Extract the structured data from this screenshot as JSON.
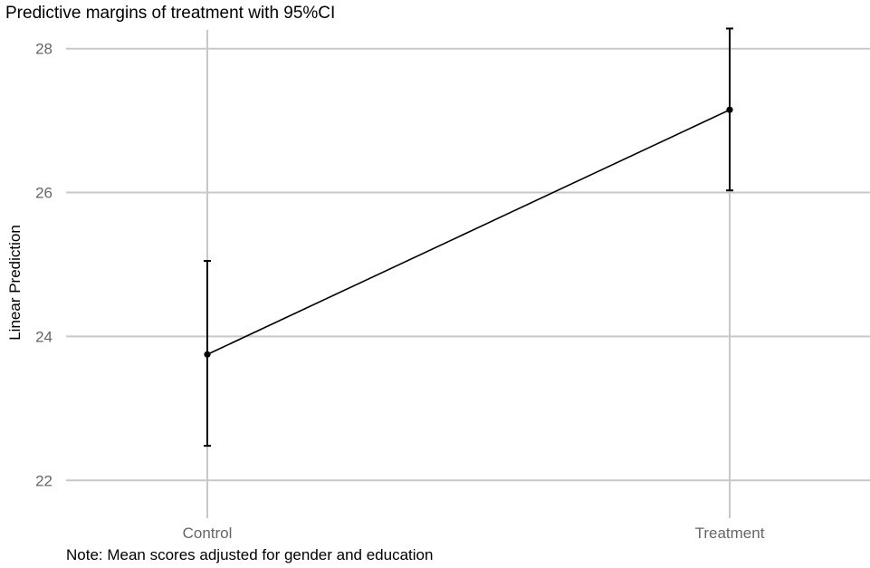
{
  "chart_data": {
    "type": "line",
    "title": "Predictive margins of treatment with 95%CI",
    "xlabel": "",
    "ylabel": "Linear Prediction",
    "categories": [
      "Control",
      "Treatment"
    ],
    "series": [
      {
        "values": [
          23.75,
          27.15
        ],
        "ci_lower": [
          22.48,
          26.03
        ],
        "ci_upper": [
          25.05,
          28.28
        ]
      }
    ],
    "ylim": [
      21.55,
      28.5
    ],
    "yticks": [
      22,
      24,
      26,
      28
    ],
    "grid": true,
    "legend": "none",
    "note": "Note: Mean scores adjusted for gender and education",
    "colors": {
      "line": "#000000",
      "grid": "#c8c8c8",
      "tick_label": "#666666"
    }
  }
}
